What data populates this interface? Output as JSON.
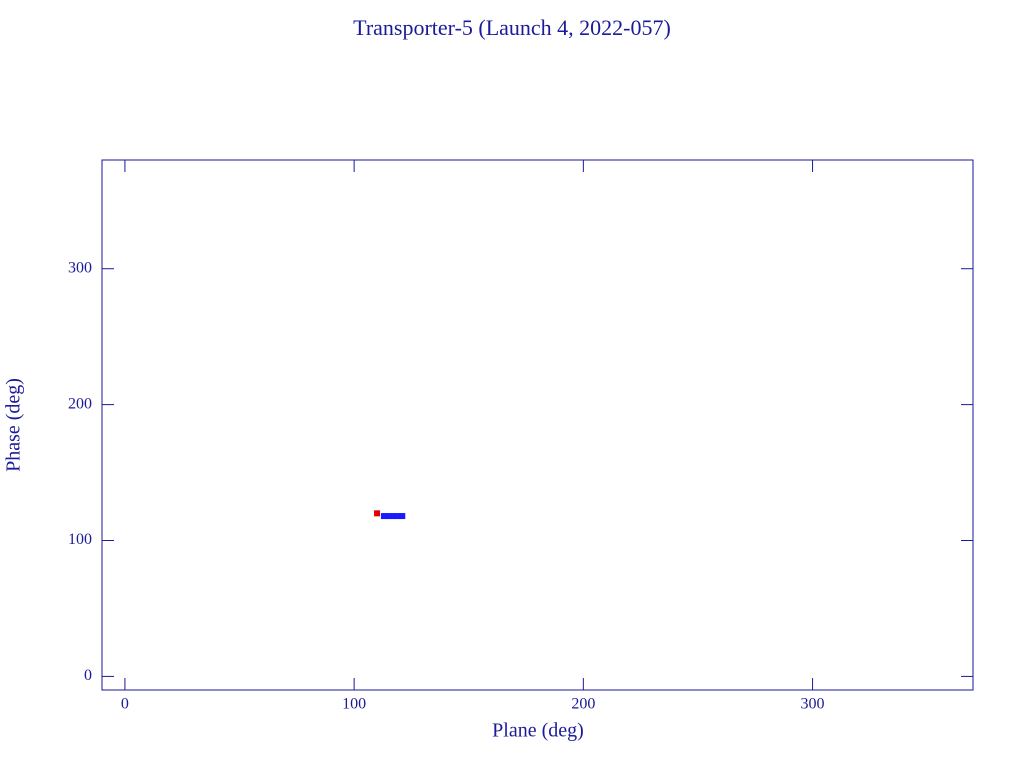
{
  "chart_data": {
    "type": "scatter",
    "title": "Transporter-5 (Launch 4, 2022-057)",
    "x_label": "Plane (deg)",
    "y_label": "Phase (deg)",
    "xlim": [
      -10,
      370
    ],
    "ylim": [
      -10,
      380
    ],
    "xticks": [
      0,
      100,
      200,
      300
    ],
    "yticks": [
      0,
      100,
      200,
      300
    ],
    "series": [
      {
        "color": "#e00000",
        "x": [
          110
        ],
        "values": [
          120
        ]
      },
      {
        "color": "#1a1aff",
        "x": [
          113,
          115,
          117,
          119,
          121
        ],
        "values": [
          118,
          118,
          118,
          118,
          118
        ]
      }
    ]
  }
}
